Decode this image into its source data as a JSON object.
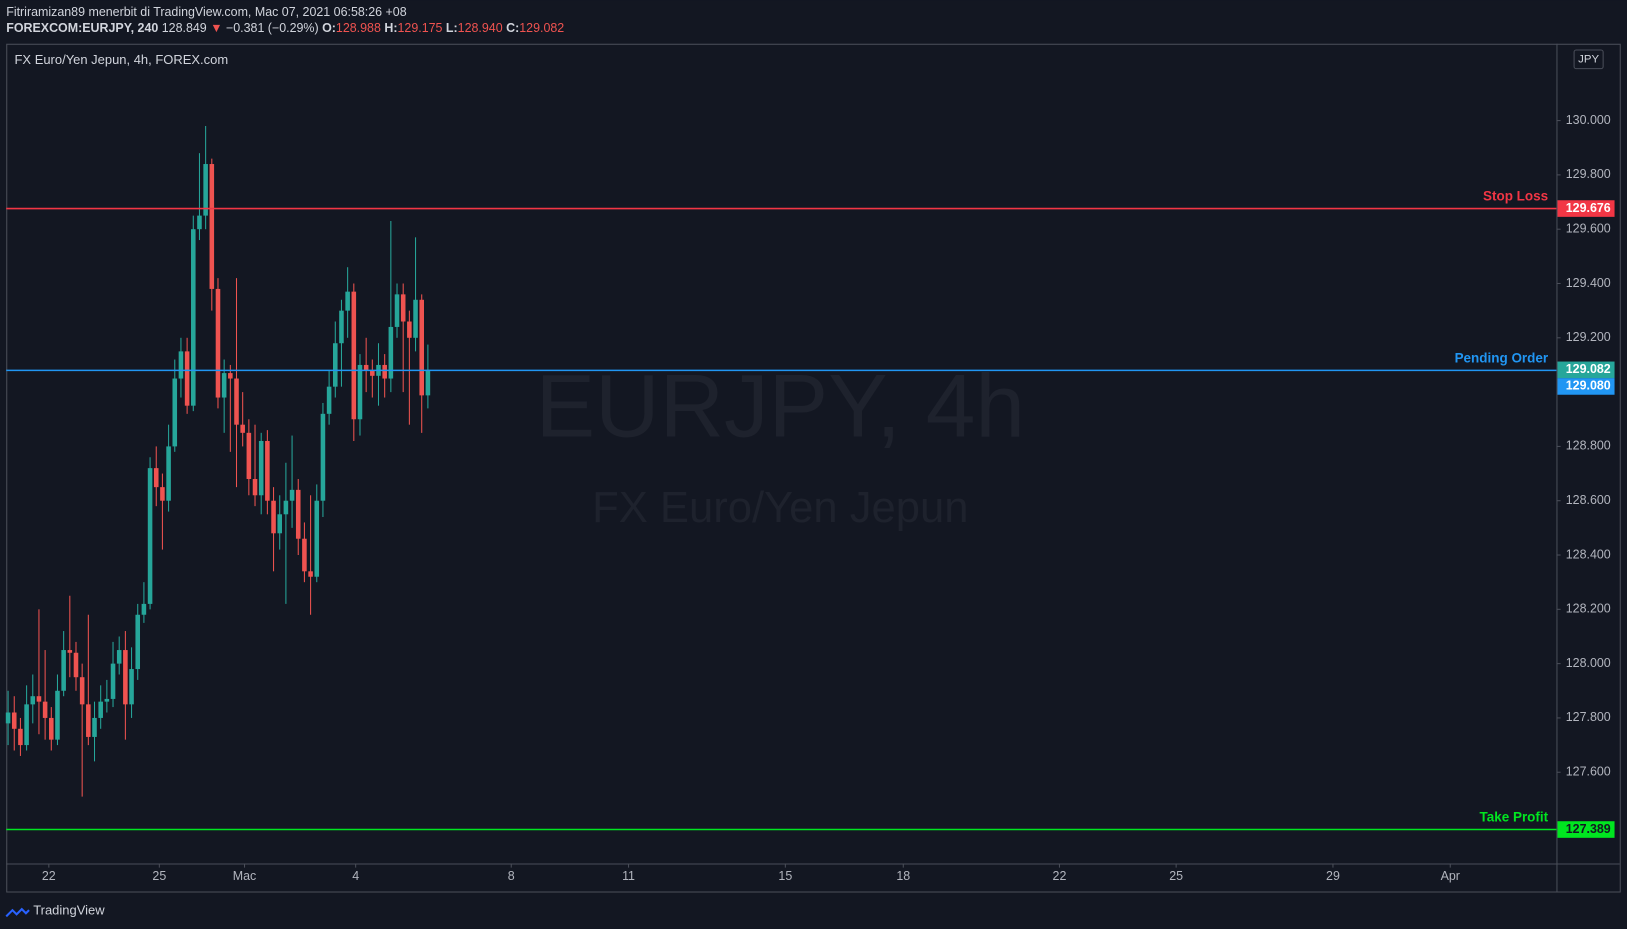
{
  "header": {
    "author_line": "Fitriramizan89 menerbit di TradingView.com, Mac 07, 2021 06:58:26 +08",
    "symbol": "FOREXCOM:EURJPY, 240",
    "last": "128.849",
    "arrow": "▼",
    "change": "−0.381 (−0.29%)",
    "ohlc": [
      {
        "label": "O:",
        "value": "128.988"
      },
      {
        "label": "H:",
        "value": "129.175"
      },
      {
        "label": "L:",
        "value": "128.940"
      },
      {
        "label": "C:",
        "value": "129.082"
      }
    ]
  },
  "chart_data": {
    "type": "candlestick",
    "legend_title": "FX Euro/Yen Jepun, 4h, FOREX.com",
    "watermark": "EURJPY, 4h",
    "watermark_subtitle": "FX Euro/Yen Jepun",
    "currency": "JPY",
    "up_color": "#26a69a",
    "down_color": "#ef5350",
    "grid": false,
    "open": [
      127.78,
      127.82,
      127.76,
      127.7,
      127.85,
      127.88,
      127.86,
      127.8,
      127.72,
      127.9,
      128.05,
      128.04,
      127.95,
      127.85,
      127.73,
      127.8,
      127.86,
      127.87,
      128.0,
      128.05,
      127.85,
      127.98,
      128.18,
      128.22,
      128.72,
      128.65,
      128.6,
      128.8,
      129.05,
      129.15,
      128.95,
      129.6,
      129.65,
      129.84,
      129.38,
      128.98,
      129.07,
      129.05,
      128.88,
      128.85,
      128.68,
      128.62,
      128.82,
      128.6,
      128.48,
      128.55,
      128.6,
      128.64,
      128.46,
      128.34,
      128.32,
      128.6,
      128.92,
      129.02,
      129.18,
      129.3,
      129.37,
      128.9,
      129.1,
      129.08,
      129.06,
      129.1,
      129.05,
      129.24,
      129.36,
      129.26,
      129.2,
      129.34,
      128.988
    ],
    "high": [
      127.9,
      127.88,
      127.8,
      127.92,
      127.96,
      128.2,
      128.05,
      127.84,
      127.96,
      128.12,
      128.25,
      128.08,
      128.0,
      128.18,
      127.86,
      127.92,
      127.94,
      128.08,
      128.1,
      128.12,
      128.06,
      128.22,
      128.3,
      128.76,
      128.8,
      128.7,
      128.88,
      129.12,
      129.2,
      129.2,
      129.65,
      129.88,
      129.98,
      129.86,
      129.42,
      129.12,
      129.1,
      129.42,
      129.0,
      128.9,
      128.88,
      128.85,
      128.86,
      128.65,
      128.62,
      128.74,
      128.84,
      128.68,
      128.52,
      128.62,
      128.66,
      128.96,
      129.08,
      129.26,
      129.34,
      129.46,
      129.4,
      129.14,
      129.2,
      129.12,
      129.18,
      129.14,
      129.63,
      129.4,
      129.4,
      129.3,
      129.57,
      129.36,
      129.175
    ],
    "low": [
      127.7,
      127.68,
      127.66,
      127.68,
      127.78,
      127.74,
      127.72,
      127.68,
      127.7,
      127.88,
      127.95,
      127.9,
      127.51,
      127.7,
      127.64,
      127.76,
      127.82,
      127.84,
      127.96,
      127.72,
      127.8,
      127.94,
      128.15,
      128.2,
      128.58,
      128.42,
      128.56,
      128.78,
      128.98,
      128.92,
      128.93,
      129.56,
      129.6,
      129.3,
      128.94,
      128.85,
      128.78,
      128.65,
      128.8,
      128.62,
      128.58,
      128.55,
      128.55,
      128.34,
      128.42,
      128.22,
      128.5,
      128.4,
      128.3,
      128.18,
      128.3,
      128.54,
      128.88,
      128.98,
      129.02,
      129.2,
      128.82,
      128.84,
      129.0,
      128.98,
      128.95,
      128.98,
      129.0,
      129.2,
      129.0,
      128.88,
      129.15,
      128.85,
      128.94
    ],
    "close": [
      127.82,
      127.76,
      127.7,
      127.85,
      127.88,
      127.86,
      127.8,
      127.72,
      127.9,
      128.05,
      128.04,
      127.95,
      127.85,
      127.73,
      127.8,
      127.86,
      127.87,
      128.0,
      128.05,
      127.85,
      127.98,
      128.18,
      128.22,
      128.72,
      128.65,
      128.6,
      128.8,
      129.05,
      129.15,
      128.95,
      129.6,
      129.65,
      129.84,
      129.38,
      128.98,
      129.07,
      129.05,
      128.88,
      128.85,
      128.68,
      128.62,
      128.82,
      128.6,
      128.48,
      128.55,
      128.6,
      128.64,
      128.46,
      128.34,
      128.32,
      128.6,
      128.92,
      129.02,
      129.18,
      129.3,
      129.37,
      128.9,
      129.1,
      129.08,
      129.06,
      129.1,
      129.05,
      129.24,
      129.36,
      129.26,
      129.2,
      129.34,
      128.988,
      129.082
    ],
    "ylim": [
      127.264,
      130.283
    ],
    "yticks": [
      {
        "value": 127.6,
        "label": "127.600"
      },
      {
        "value": 127.8,
        "label": "127.800"
      },
      {
        "value": 128,
        "label": "128.000"
      },
      {
        "value": 128.2,
        "label": "128.200"
      },
      {
        "value": 128.4,
        "label": "128.400"
      },
      {
        "value": 128.6,
        "label": "128.600"
      },
      {
        "value": 128.8,
        "label": "128.800"
      },
      {
        "value": 129.2,
        "label": "129.200"
      },
      {
        "value": 129.4,
        "label": "129.400"
      },
      {
        "value": 129.6,
        "label": "129.600"
      },
      {
        "value": 129.8,
        "label": "129.800"
      },
      {
        "value": 130,
        "label": "130.000"
      }
    ],
    "xlim": [
      -0.3,
      250.8
    ],
    "xticks": [
      {
        "value": 6.6,
        "label": "22"
      },
      {
        "value": 24.5,
        "label": "25"
      },
      {
        "value": 38.3,
        "label": "Mac"
      },
      {
        "value": 56.3,
        "label": "4"
      },
      {
        "value": 81.5,
        "label": "8"
      },
      {
        "value": 100.5,
        "label": "11"
      },
      {
        "value": 125.9,
        "label": "15"
      },
      {
        "value": 145,
        "label": "18"
      },
      {
        "value": 170.3,
        "label": "22"
      },
      {
        "value": 189.2,
        "label": "25"
      },
      {
        "value": 214.6,
        "label": "29"
      },
      {
        "value": 233.6,
        "label": "Apr"
      }
    ],
    "lines": [
      {
        "name": "Stop Loss",
        "value": 129.676,
        "color": "#f23645"
      },
      {
        "name": "Pending Order",
        "value": 129.08,
        "label": "129.080",
        "color": "#2196f3"
      },
      {
        "name": "Take Profit",
        "value": 127.389,
        "color": "#00e620"
      }
    ]
  },
  "footer": "TradingView"
}
